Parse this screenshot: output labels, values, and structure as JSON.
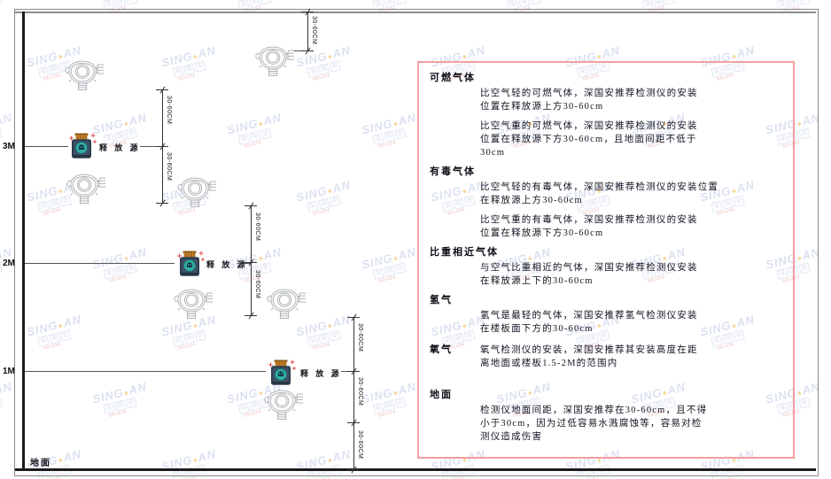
{
  "diagram": {
    "height_labels": [
      "3M",
      "2M",
      "1M"
    ],
    "ground_label": "地面",
    "release_source_label": "释 放 源",
    "dimension_label": "30-60CM"
  },
  "panel": {
    "sections": [
      {
        "heading": "可燃气体",
        "paras": [
          "比空气轻的可燃气体，深国安推荐检测仪的安装\n位置在释放源上方30-60cm",
          "比空气重的可燃气体，深国安推荐检测仪的安装\n位置在释放源下方30-60cm，且地面间距不低于\n30cm"
        ]
      },
      {
        "heading": "有毒气体",
        "paras": [
          "比空气轻的有毒气体，深国安推荐检测仪的安装位置\n在释放源上方30-60cm",
          "比空气重的有毒气体，深国安推荐检测仪的安装\n位置在释放源下方30-60cm"
        ]
      },
      {
        "heading": "比重相近气体",
        "paras": [
          "与空气比重相近的气体，深国安推荐检测仪安装\n在释放源上下的30-60cm"
        ]
      },
      {
        "heading": "氢气",
        "paras": [
          "氢气是最轻的气体，深国安推荐氢气检测仪安装\n在楼板面下方的30-60cm"
        ]
      },
      {
        "heading": "氧气",
        "inline": true,
        "paras": [
          "氧气检测仪的安装，深国安推荐其安装高度在距\n离地面或楼板1.5-2M的范围内"
        ]
      },
      {
        "heading": "地面",
        "gap_before": true,
        "paras": [
          "检测仪地面间距，深国安推荐在30-60cm，且不得\n小于30cm，因为过低容易水溅腐蚀等，容易对检\n测仪造成伤害"
        ]
      }
    ]
  },
  "watermark": {
    "brand_left": "SING",
    "brand_dot": "●",
    "brand_right": "AN",
    "cjk_chars": [
      "深",
      "国",
      "安"
    ],
    "code": "661434"
  },
  "colors": {
    "panel_border": "#f2a0a0",
    "source_body": "#2e3e4e",
    "source_cap": "#c9812d",
    "source_badge": "#2fb3aa",
    "detector_stroke": "#b0b4b8",
    "watermark_blue": "#b9c5e2",
    "watermark_red": "#e26b6b"
  }
}
